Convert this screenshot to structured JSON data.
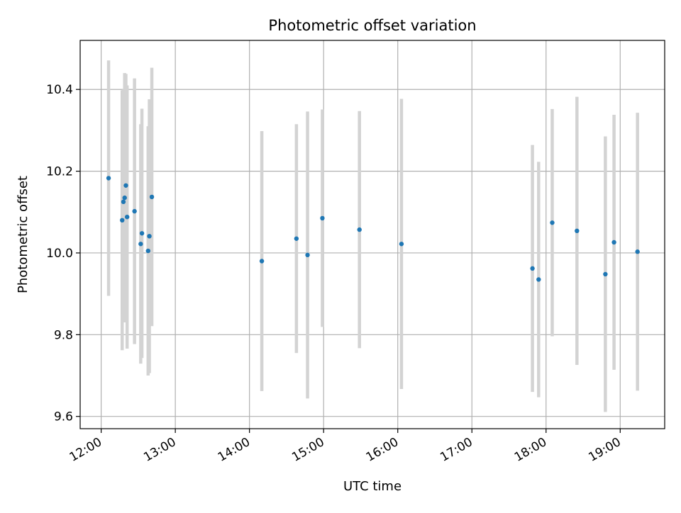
{
  "chart_data": {
    "type": "scatter",
    "title": "Photometric offset variation",
    "xlabel": "UTC time",
    "ylabel": "Photometric offset",
    "x_ticks": [
      "12:00",
      "13:00",
      "14:00",
      "15:00",
      "16:00",
      "17:00",
      "18:00",
      "19:00"
    ],
    "y_ticks": [
      "9.6",
      "9.8",
      "10.0",
      "10.2",
      "10.4"
    ],
    "xlim": [
      "11:43",
      "19:36"
    ],
    "ylim": [
      9.57,
      10.52
    ],
    "grid": true,
    "legend": "none",
    "colors": {
      "point": "#1f77b4",
      "errorbar": "#d3d3d3",
      "grid": "#b0b0b0"
    },
    "points": [
      {
        "x": "12:06",
        "y": 10.183,
        "yerr": 0.288
      },
      {
        "x": "12:17",
        "y": 10.08,
        "yerr": 0.318
      },
      {
        "x": "12:18",
        "y": 10.125,
        "yerr": 0.275
      },
      {
        "x": "12:19",
        "y": 10.135,
        "yerr": 0.305
      },
      {
        "x": "12:20",
        "y": 10.165,
        "yerr": 0.273
      },
      {
        "x": "12:21",
        "y": 10.088,
        "yerr": 0.322
      },
      {
        "x": "12:27",
        "y": 10.102,
        "yerr": 0.325
      },
      {
        "x": "12:32",
        "y": 10.022,
        "yerr": 0.293
      },
      {
        "x": "12:33",
        "y": 10.048,
        "yerr": 0.305
      },
      {
        "x": "12:38",
        "y": 10.005,
        "yerr": 0.305
      },
      {
        "x": "12:39",
        "y": 10.041,
        "yerr": 0.335
      },
      {
        "x": "12:41",
        "y": 10.137,
        "yerr": 0.316
      },
      {
        "x": "14:10",
        "y": 9.98,
        "yerr": 0.318
      },
      {
        "x": "14:38",
        "y": 10.035,
        "yerr": 0.28
      },
      {
        "x": "14:47",
        "y": 9.995,
        "yerr": 0.351
      },
      {
        "x": "14:59",
        "y": 10.085,
        "yerr": 0.266
      },
      {
        "x": "15:29",
        "y": 10.057,
        "yerr": 0.29
      },
      {
        "x": "16:03",
        "y": 10.022,
        "yerr": 0.355
      },
      {
        "x": "17:49",
        "y": 9.962,
        "yerr": 0.302
      },
      {
        "x": "17:54",
        "y": 9.935,
        "yerr": 0.288
      },
      {
        "x": "18:05",
        "y": 10.074,
        "yerr": 0.278
      },
      {
        "x": "18:25",
        "y": 10.054,
        "yerr": 0.328
      },
      {
        "x": "18:48",
        "y": 9.948,
        "yerr": 0.337
      },
      {
        "x": "18:55",
        "y": 10.026,
        "yerr": 0.312
      },
      {
        "x": "19:14",
        "y": 10.003,
        "yerr": 0.34
      }
    ]
  }
}
